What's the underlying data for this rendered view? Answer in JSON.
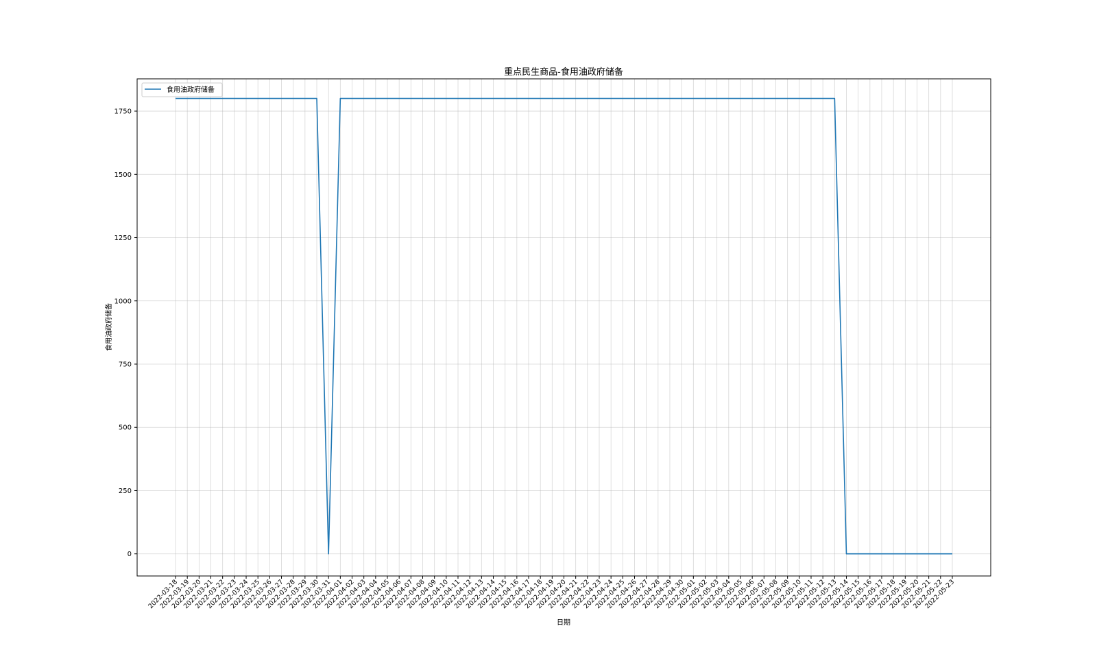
{
  "chart_data": {
    "type": "line",
    "title": "重点民生商品-食用油政府储备",
    "xlabel": "日期",
    "ylabel": "食用油政府储备",
    "categories": [
      "2022-03-18",
      "2022-03-19",
      "2022-03-20",
      "2022-03-21",
      "2022-03-22",
      "2022-03-23",
      "2022-03-24",
      "2022-03-25",
      "2022-03-26",
      "2022-03-27",
      "2022-03-28",
      "2022-03-29",
      "2022-03-30",
      "2022-03-31",
      "2022-04-01",
      "2022-04-02",
      "2022-04-03",
      "2022-04-04",
      "2022-04-05",
      "2022-04-06",
      "2022-04-07",
      "2022-04-08",
      "2022-04-09",
      "2022-04-10",
      "2022-04-11",
      "2022-04-12",
      "2022-04-13",
      "2022-04-14",
      "2022-04-15",
      "2022-04-16",
      "2022-04-17",
      "2022-04-18",
      "2022-04-19",
      "2022-04-20",
      "2022-04-21",
      "2022-04-22",
      "2022-04-23",
      "2022-04-24",
      "2022-04-25",
      "2022-04-26",
      "2022-04-27",
      "2022-04-28",
      "2022-04-29",
      "2022-04-30",
      "2022-05-01",
      "2022-05-02",
      "2022-05-03",
      "2022-05-04",
      "2022-05-05",
      "2022-05-06",
      "2022-05-07",
      "2022-05-08",
      "2022-05-09",
      "2022-05-10",
      "2022-05-11",
      "2022-05-12",
      "2022-05-13",
      "2022-05-14",
      "2022-05-15",
      "2022-05-16",
      "2022-05-17",
      "2022-05-18",
      "2022-05-19",
      "2022-05-20",
      "2022-05-21",
      "2022-05-22",
      "2022-05-23"
    ],
    "series": [
      {
        "name": "食用油政府储备",
        "color": "#1f77b4",
        "values": [
          1800,
          1800,
          1800,
          1800,
          1800,
          1800,
          1800,
          1800,
          1800,
          1800,
          1800,
          1800,
          1800,
          0,
          1800,
          1800,
          1800,
          1800,
          1800,
          1800,
          1800,
          1800,
          1800,
          1800,
          1800,
          1800,
          1800,
          1800,
          1800,
          1800,
          1800,
          1800,
          1800,
          1800,
          1800,
          1800,
          1800,
          1800,
          1800,
          1800,
          1800,
          1800,
          1800,
          1800,
          1800,
          1800,
          1800,
          1800,
          1800,
          1800,
          1800,
          1800,
          1800,
          1800,
          1800,
          1800,
          1800,
          0,
          0,
          0,
          0,
          0,
          0,
          0,
          0,
          0,
          0
        ]
      }
    ],
    "ylim": [
      -87.5,
      1877.5
    ],
    "yticks": [
      0,
      250,
      500,
      750,
      1000,
      1250,
      1500,
      1750
    ],
    "grid": true,
    "legend_position": "top-left"
  }
}
